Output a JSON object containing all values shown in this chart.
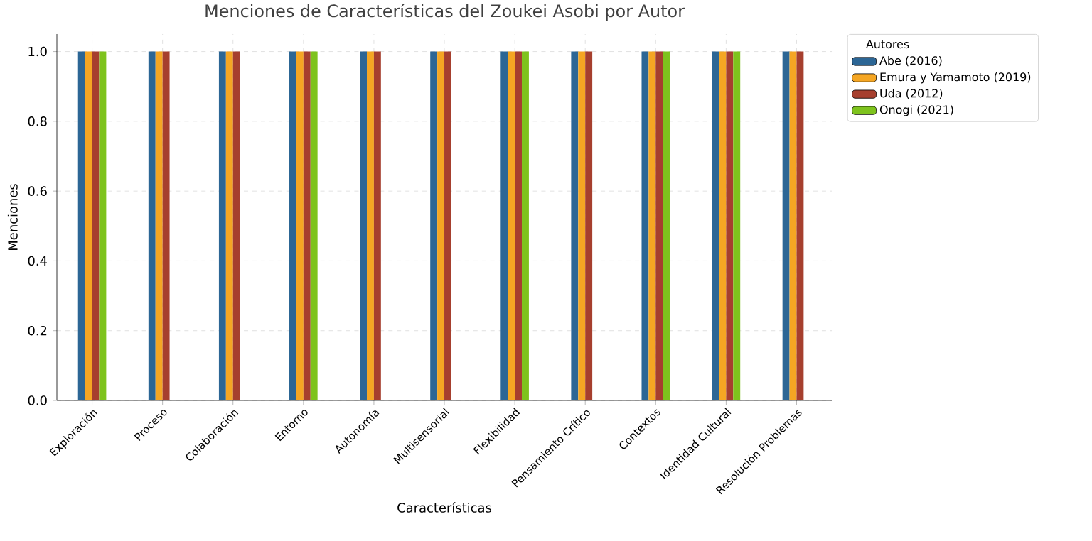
{
  "chart_data": {
    "type": "bar",
    "title": "Menciones de Características del Zoukei Asobi por Autor",
    "xlabel": "Características",
    "ylabel": "Menciones",
    "legend_title": "Autores",
    "categories": [
      "Exploración",
      "Proceso",
      "Colaboración",
      "Entorno",
      "Autonomía",
      "Multisensorial",
      "Flexibilidad",
      "Pensamiento Crítico",
      "Contextos",
      "Identidad Cultural",
      "Resolución Problemas"
    ],
    "series": [
      {
        "name": "Abe (2016)",
        "color": "#2c6695",
        "values": [
          1,
          1,
          1,
          1,
          1,
          1,
          1,
          1,
          1,
          1,
          1
        ]
      },
      {
        "name": "Emura y Yamamoto (2019)",
        "color": "#f5a623",
        "values": [
          1,
          1,
          1,
          1,
          1,
          1,
          1,
          1,
          1,
          1,
          1
        ]
      },
      {
        "name": "Uda (2012)",
        "color": "#a63f2e",
        "values": [
          1,
          1,
          1,
          1,
          1,
          1,
          1,
          1,
          1,
          1,
          1
        ]
      },
      {
        "name": "Onogi (2021)",
        "color": "#7ec31d",
        "values": [
          1,
          0,
          0,
          1,
          0,
          0,
          1,
          0,
          1,
          1,
          0
        ]
      }
    ],
    "ylim": [
      0,
      1.05
    ],
    "yticks": [
      {
        "value": 0,
        "label": "0.0"
      },
      {
        "value": 0.2,
        "label": "0.2"
      },
      {
        "value": 0.4,
        "label": "0.4"
      },
      {
        "value": 0.6,
        "label": "0.6"
      },
      {
        "value": 0.8,
        "label": "0.8"
      },
      {
        "value": 1.0,
        "label": "1.0"
      }
    ],
    "grid": true,
    "legend": "top right"
  }
}
